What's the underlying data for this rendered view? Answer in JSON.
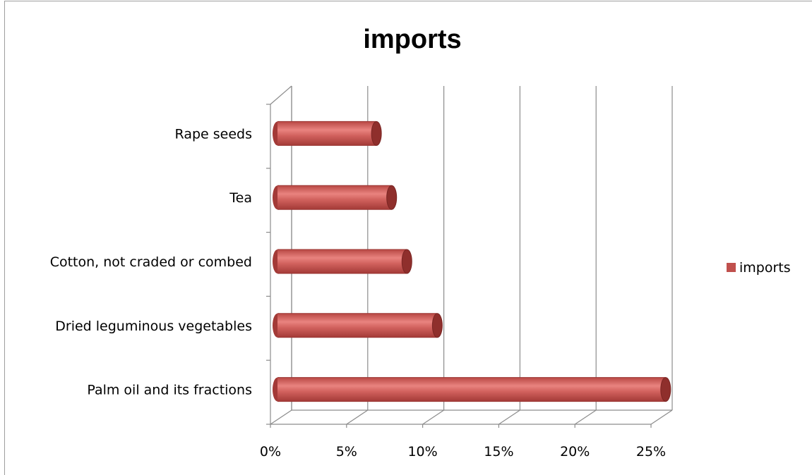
{
  "chart_data": {
    "type": "bar",
    "orientation": "horizontal",
    "style": "3d-cylinder",
    "title": "imports",
    "categories": [
      "Rape seeds",
      "Tea",
      "Cotton, not craded or combed",
      "Dried leguminous vegetables",
      "Palm oil and its fractions"
    ],
    "series": [
      {
        "name": "imports",
        "values": [
          6.5,
          7.5,
          8.5,
          10.5,
          25.5
        ]
      }
    ],
    "x_ticks": [
      "0%",
      "5%",
      "10%",
      "15%",
      "20%",
      "25%"
    ],
    "xlim": [
      0,
      25
    ],
    "grid": true,
    "legend_position": "right",
    "colors": {
      "bar": "#c0504d",
      "bar_light": "#e8807c",
      "bar_dark": "#8f2f2c",
      "grid": "#8c8c8c"
    }
  }
}
